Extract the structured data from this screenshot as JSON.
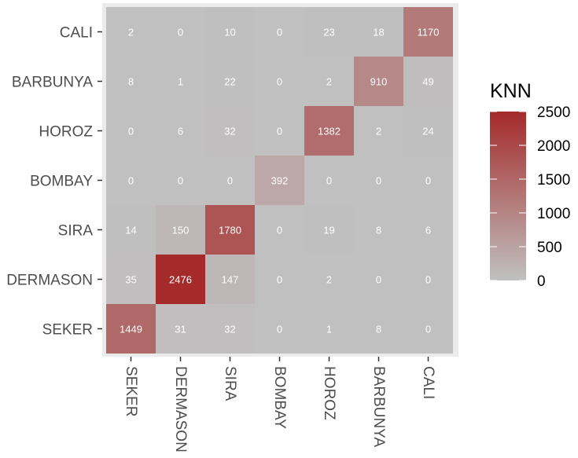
{
  "chart_data": {
    "type": "heatmap",
    "x_categories": [
      "SEKER",
      "DERMASON",
      "SIRA",
      "BOMBAY",
      "HOROZ",
      "BARBUNYA",
      "CALI"
    ],
    "y_categories": [
      "CALI",
      "BARBUNYA",
      "HOROZ",
      "BOMBAY",
      "SIRA",
      "DERMASON",
      "SEKER"
    ],
    "values": [
      [
        2,
        0,
        10,
        0,
        23,
        18,
        1170
      ],
      [
        8,
        1,
        22,
        0,
        2,
        910,
        49
      ],
      [
        0,
        6,
        32,
        0,
        1382,
        2,
        24
      ],
      [
        0,
        0,
        0,
        392,
        0,
        0,
        0
      ],
      [
        14,
        150,
        1780,
        0,
        19,
        8,
        6
      ],
      [
        35,
        2476,
        147,
        0,
        2,
        0,
        0
      ],
      [
        1449,
        31,
        32,
        0,
        1,
        8,
        0
      ]
    ],
    "legend": {
      "title": "KNN",
      "breaks": [
        0,
        500,
        1000,
        1500,
        2000,
        2500
      ],
      "limits": [
        0,
        2500
      ],
      "low_color": "#c0c0c0",
      "high_color": "#a52a2a",
      "placement": "right"
    },
    "panel_background": "#ebebeb",
    "grid": false
  }
}
